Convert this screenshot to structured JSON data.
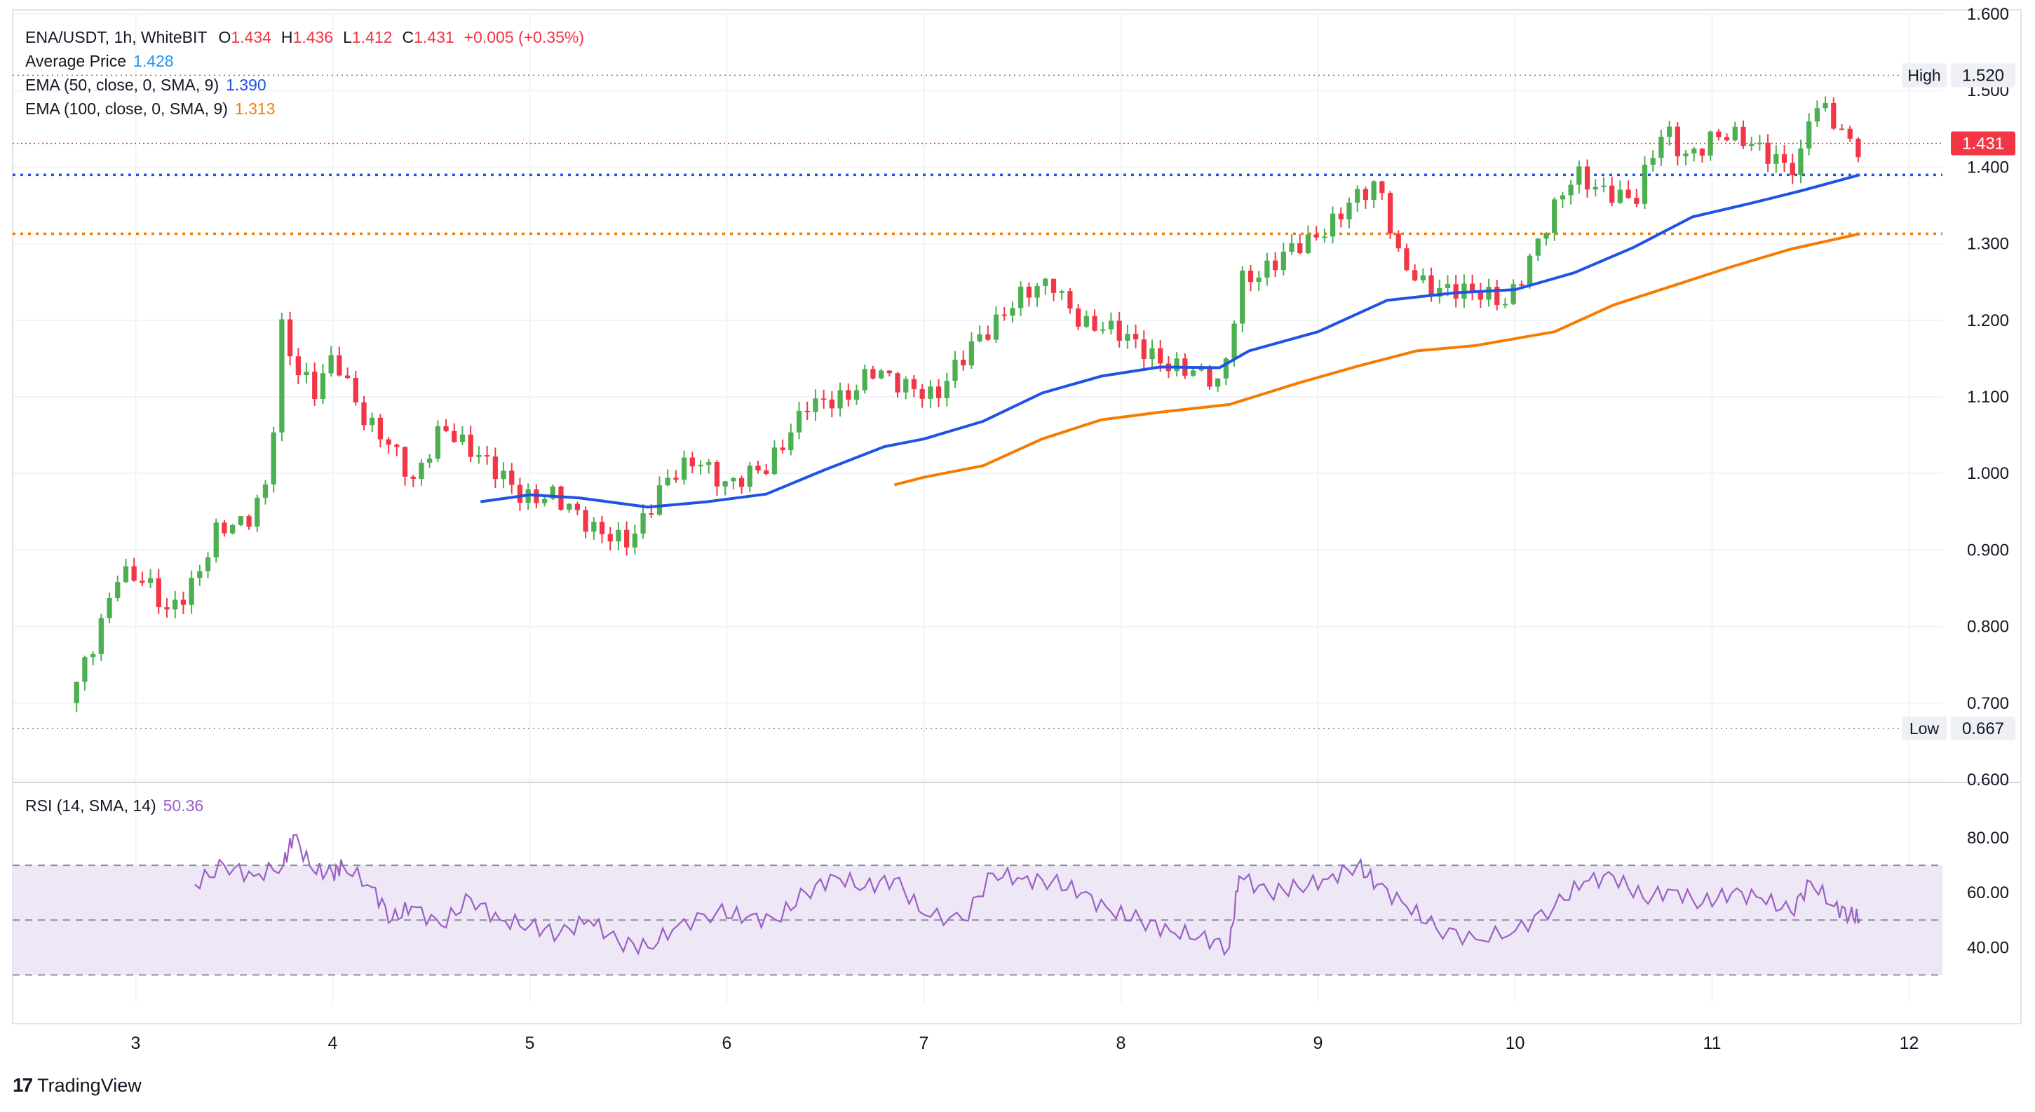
{
  "legend": {
    "symbol": "ENA/USDT, 1h, WhiteBIT",
    "open_label": "O",
    "open": "1.434",
    "high_label": "H",
    "high": "1.436",
    "low_label": "L",
    "low": "1.412",
    "close_label": "C",
    "close": "1.431",
    "change": "+0.005 (+0.35%)",
    "avg_label": "Average Price",
    "avg_value": "1.428",
    "ema50_label": "EMA (50, close, 0, SMA, 9)",
    "ema50_value": "1.390",
    "ema100_label": "EMA (100, close, 0, SMA, 9)",
    "ema100_value": "1.313",
    "rsi_label": "RSI (14, SMA, 14)",
    "rsi_value": "50.36"
  },
  "brand": {
    "name": "TradingView",
    "logo_text": "17"
  },
  "colors": {
    "up": "#26a69a",
    "up_body": "#4caf50",
    "down": "#f23645",
    "ema50": "#1e53e5",
    "ema100": "#f57c00",
    "rsi": "#9c5fc4",
    "rsi_band": "#ede7f6",
    "grid": "#f0f3fa",
    "text": "#131722"
  },
  "chart_data": [
    {
      "type": "candlestick",
      "title": "ENA/USDT, 1h, WhiteBIT",
      "x_tick_labels": [
        "3",
        "4",
        "5",
        "6",
        "7",
        "8",
        "9",
        "10",
        "11",
        "12"
      ],
      "ylim": [
        0.6,
        1.6
      ],
      "y_tick_labels": [
        "1.600",
        "1.500",
        "1.400",
        "1.300",
        "1.200",
        "1.100",
        "1.000",
        "0.900",
        "0.800",
        "0.700",
        "0.600"
      ],
      "high_marker": {
        "label": "High",
        "value": "1.520"
      },
      "low_marker": {
        "label": "Low",
        "value": "0.667"
      },
      "last_price": "1.431",
      "price_path": [
        [
          2.7,
          0.7
        ],
        [
          2.85,
          0.8
        ],
        [
          2.95,
          0.87
        ],
        [
          3.1,
          0.85
        ],
        [
          3.2,
          0.82
        ],
        [
          3.35,
          0.87
        ],
        [
          3.45,
          0.92
        ],
        [
          3.6,
          0.93
        ],
        [
          3.72,
          1.0
        ],
        [
          3.78,
          1.2
        ],
        [
          3.85,
          1.14
        ],
        [
          3.95,
          1.1
        ],
        [
          4.05,
          1.15
        ],
        [
          4.2,
          1.08
        ],
        [
          4.3,
          1.05
        ],
        [
          4.45,
          0.98
        ],
        [
          4.6,
          1.07
        ],
        [
          4.72,
          1.04
        ],
        [
          4.85,
          1.0
        ],
        [
          5.0,
          0.97
        ],
        [
          5.15,
          0.98
        ],
        [
          5.35,
          0.92
        ],
        [
          5.55,
          0.92
        ],
        [
          5.72,
          0.98
        ],
        [
          5.9,
          1.02
        ],
        [
          6.05,
          0.99
        ],
        [
          6.25,
          1.0
        ],
        [
          6.45,
          1.1
        ],
        [
          6.65,
          1.09
        ],
        [
          6.8,
          1.14
        ],
        [
          6.95,
          1.12
        ],
        [
          7.1,
          1.09
        ],
        [
          7.3,
          1.18
        ],
        [
          7.5,
          1.22
        ],
        [
          7.7,
          1.25
        ],
        [
          7.85,
          1.2
        ],
        [
          8.0,
          1.18
        ],
        [
          8.2,
          1.16
        ],
        [
          8.4,
          1.13
        ],
        [
          8.55,
          1.11
        ],
        [
          8.65,
          1.26
        ],
        [
          8.8,
          1.27
        ],
        [
          9.0,
          1.3
        ],
        [
          9.2,
          1.36
        ],
        [
          9.35,
          1.37
        ],
        [
          9.45,
          1.28
        ],
        [
          9.6,
          1.25
        ],
        [
          9.8,
          1.23
        ],
        [
          10.0,
          1.23
        ],
        [
          10.2,
          1.32
        ],
        [
          10.35,
          1.39
        ],
        [
          10.55,
          1.37
        ],
        [
          10.65,
          1.35
        ],
        [
          10.8,
          1.45
        ],
        [
          10.9,
          1.42
        ],
        [
          11.05,
          1.44
        ],
        [
          11.2,
          1.43
        ],
        [
          11.35,
          1.42
        ],
        [
          11.48,
          1.4
        ],
        [
          11.55,
          1.48
        ],
        [
          11.68,
          1.45
        ],
        [
          11.75,
          1.431
        ]
      ],
      "series": [
        {
          "name": "EMA (50, close, 0, SMA, 9)",
          "points": [
            [
              4.75,
              0.963
            ],
            [
              5.0,
              0.972
            ],
            [
              5.25,
              0.968
            ],
            [
              5.6,
              0.956
            ],
            [
              5.9,
              0.963
            ],
            [
              6.2,
              0.973
            ],
            [
              6.5,
              1.005
            ],
            [
              6.8,
              1.035
            ],
            [
              7.0,
              1.045
            ],
            [
              7.3,
              1.068
            ],
            [
              7.6,
              1.105
            ],
            [
              7.9,
              1.127
            ],
            [
              8.2,
              1.139
            ],
            [
              8.5,
              1.138
            ],
            [
              8.65,
              1.16
            ],
            [
              9.0,
              1.185
            ],
            [
              9.35,
              1.226
            ],
            [
              9.7,
              1.236
            ],
            [
              10.0,
              1.24
            ],
            [
              10.3,
              1.262
            ],
            [
              10.6,
              1.295
            ],
            [
              10.9,
              1.335
            ],
            [
              11.2,
              1.353
            ],
            [
              11.45,
              1.369
            ],
            [
              11.75,
              1.39
            ]
          ]
        },
        {
          "name": "EMA (100, close, 0, SMA, 9)",
          "points": [
            [
              6.85,
              0.985
            ],
            [
              7.0,
              0.995
            ],
            [
              7.3,
              1.01
            ],
            [
              7.6,
              1.045
            ],
            [
              7.9,
              1.07
            ],
            [
              8.2,
              1.08
            ],
            [
              8.55,
              1.09
            ],
            [
              8.9,
              1.118
            ],
            [
              9.2,
              1.14
            ],
            [
              9.5,
              1.16
            ],
            [
              9.8,
              1.167
            ],
            [
              10.2,
              1.185
            ],
            [
              10.5,
              1.22
            ],
            [
              10.8,
              1.245
            ],
            [
              11.1,
              1.27
            ],
            [
              11.4,
              1.293
            ],
            [
              11.75,
              1.313
            ]
          ]
        }
      ],
      "reference_lines": {
        "ema50": 1.39,
        "ema100": 1.313,
        "last": 1.431,
        "high": 1.52,
        "low": 0.667
      }
    },
    {
      "type": "line",
      "title": "RSI (14, SMA, 14)",
      "ylim": [
        25,
        90
      ],
      "y_tick_labels": [
        "80.00",
        "60.00",
        "40.00"
      ],
      "bands": [
        30,
        50,
        70
      ],
      "x": [
        3.3,
        3.45,
        3.6,
        3.75,
        3.8,
        3.9,
        4.0,
        4.05,
        4.2,
        4.3,
        4.4,
        4.55,
        4.7,
        4.85,
        5.0,
        5.15,
        5.3,
        5.45,
        5.6,
        5.75,
        5.95,
        6.1,
        6.25,
        6.4,
        6.55,
        6.7,
        6.85,
        7.0,
        7.2,
        7.35,
        7.5,
        7.65,
        7.8,
        7.95,
        8.1,
        8.25,
        8.4,
        8.55,
        8.6,
        8.75,
        8.9,
        9.05,
        9.2,
        9.3,
        9.45,
        9.6,
        9.8,
        10.0,
        10.2,
        10.35,
        10.5,
        10.65,
        10.8,
        10.95,
        11.1,
        11.25,
        11.4,
        11.5,
        11.62,
        11.7,
        11.75
      ],
      "values": [
        63,
        70,
        66,
        70,
        81,
        68,
        67,
        70,
        62,
        50,
        55,
        48,
        58,
        50,
        48,
        45,
        50,
        42,
        40,
        48,
        53,
        51,
        50,
        60,
        66,
        62,
        65,
        52,
        50,
        67,
        65,
        64,
        60,
        53,
        50,
        46,
        44,
        40,
        66,
        60,
        62,
        65,
        70,
        63,
        55,
        47,
        43,
        46,
        55,
        64,
        66,
        58,
        61,
        56,
        60,
        58,
        53,
        64,
        55,
        52,
        50.36
      ]
    }
  ]
}
